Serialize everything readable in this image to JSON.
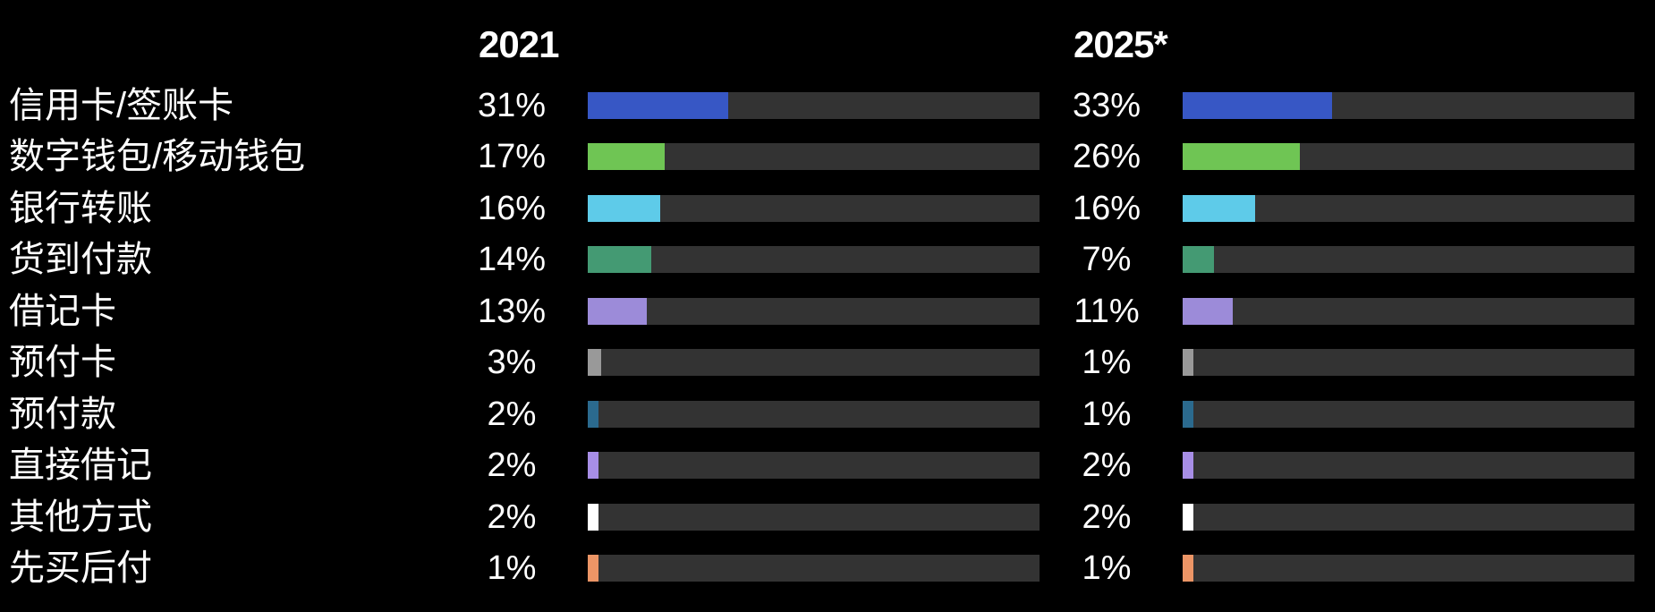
{
  "chart_data": {
    "type": "bar",
    "orientation": "horizontal",
    "title": "",
    "categories": [
      "信用卡/签账卡",
      "数字钱包/移动钱包",
      "银行转账",
      "货到付款",
      "借记卡",
      "预付卡",
      "预付款",
      "直接借记",
      "其他方式",
      "先买后付"
    ],
    "series": [
      {
        "name": "2021",
        "values": [
          31,
          17,
          16,
          14,
          13,
          3,
          2,
          2,
          2,
          1
        ],
        "labels": [
          "31%",
          "17%",
          "16%",
          "14%",
          "13%",
          "3%",
          "2%",
          "2%",
          "2%",
          "1%"
        ]
      },
      {
        "name": "2025*",
        "values": [
          33,
          26,
          16,
          7,
          11,
          1,
          1,
          2,
          2,
          1
        ],
        "labels": [
          "33%",
          "26%",
          "16%",
          "7%",
          "11%",
          "1%",
          "1%",
          "2%",
          "2%",
          "1%"
        ]
      }
    ],
    "value_suffix": "%",
    "xlim": [
      0,
      100
    ],
    "grid": false,
    "legend_position": "column-headers",
    "bar_colors": [
      "#3757c5",
      "#6fc554",
      "#5ecbe9",
      "#449a73",
      "#9c8bd9",
      "#999999",
      "#2b6a8e",
      "#a78ee6",
      "#ffffff",
      "#ec9566"
    ],
    "track_color": "#333333",
    "background_color": "#000000",
    "text_color": "#ffffff"
  }
}
